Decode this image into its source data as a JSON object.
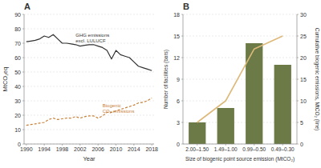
{
  "chart_data": [
    {
      "type": "line",
      "title": "A",
      "xlabel": "Year",
      "ylabel": "MtCO₂eq",
      "x": [
        1990,
        1991,
        1992,
        1993,
        1994,
        1995,
        1996,
        1997,
        1998,
        1999,
        2000,
        2001,
        2002,
        2003,
        2004,
        2005,
        2006,
        2007,
        2008,
        2009,
        2010,
        2011,
        2012,
        2013,
        2014,
        2015,
        2016,
        2017,
        2018
      ],
      "xlim": [
        1989.5,
        2018.5
      ],
      "xticks": [
        1990,
        1994,
        1998,
        2002,
        2006,
        2010,
        2014,
        2018
      ],
      "ylim": [
        0,
        90
      ],
      "yticks": [
        0,
        10,
        20,
        30,
        40,
        50,
        60,
        70,
        80,
        90
      ],
      "grid": true,
      "series": [
        {
          "color": "#333333",
          "line_style": "solid",
          "values": [
            71,
            71.5,
            72,
            73,
            75,
            74,
            76,
            73,
            70,
            70,
            69.5,
            69,
            68,
            68.5,
            69,
            69,
            68,
            67,
            65,
            59,
            65,
            62,
            61,
            60,
            57,
            54,
            53,
            52,
            51
          ]
        },
        {
          "color": "#c8813a",
          "line_style": "dashed",
          "values": [
            13,
            13.5,
            14,
            14.5,
            15,
            17,
            18,
            17,
            17.5,
            18,
            18,
            19,
            18,
            19,
            19.5,
            19.5,
            18,
            19.5,
            22,
            22,
            23,
            24,
            25,
            26,
            27,
            28.5,
            29,
            30,
            32
          ]
        }
      ],
      "annotations": [
        {
          "text": "GHG emissions\nexcl. LULUCF",
          "x": 2001,
          "y": 69.5
        },
        {
          "text": "Biogenic\nCO₂ emissions",
          "x": 2007,
          "y": 21
        }
      ]
    },
    {
      "type": "bar",
      "title": "B",
      "xlabel": "Size of biogenic point source emission (MtCO₂)",
      "ylabel": "Number of facilities (bars)",
      "y2label": "Cumulative biogenic emissions, MtCO₂ (line)",
      "categories": [
        "2.00–1.50",
        "1.49–1.00",
        "0.99–0.50",
        "0.49–0.30"
      ],
      "ylim": [
        0,
        18
      ],
      "yticks": [
        0,
        3,
        6,
        9,
        12,
        15,
        18
      ],
      "y2lim": [
        0,
        30
      ],
      "y2ticks": [
        0,
        5,
        10,
        15,
        20,
        25,
        30
      ],
      "grid": true,
      "series": [
        {
          "type": "bar",
          "color": "#6b7a46",
          "values": [
            3,
            5,
            14,
            11
          ]
        },
        {
          "type": "line",
          "axis": "y2",
          "color": "#ddb97a",
          "values": [
            5,
            10,
            22,
            25
          ]
        }
      ]
    }
  ]
}
